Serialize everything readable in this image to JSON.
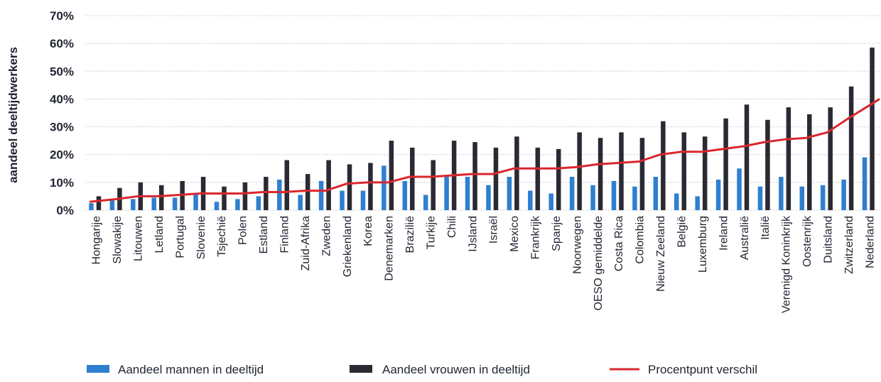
{
  "chart_data": {
    "type": "bar",
    "title": "",
    "xlabel": "",
    "ylabel": "aandeel deeltijdwerkers",
    "ylim": [
      0,
      70
    ],
    "yticks": [
      "0%",
      "10%",
      "20%",
      "30%",
      "40%",
      "50%",
      "60%",
      "70%"
    ],
    "grid": true,
    "legend_position": "bottom",
    "categories": [
      "Hongarije",
      "Slowakije",
      "Litouwen",
      "Letland",
      "Portugal",
      "Slovenie",
      "Tsjechië",
      "Polen",
      "Estland",
      "Finland",
      "Zuid-Afrika",
      "Zweden",
      "Griekenland",
      "Korea",
      "Denemarken",
      "Brazilië",
      "Turkije",
      "Chili",
      "IJsland",
      "Israël",
      "Mexico",
      "Frankrijk",
      "Spanje",
      "Noorwegen",
      "OESO gemiddelde",
      "Costa Rica",
      "Colombia",
      "Nieuw Zeeland",
      "België",
      "Luxemburg",
      "Ireland",
      "Australië",
      "Italië",
      "Verenigd Koninkrijk",
      "Oostenrijk",
      "Duitsland",
      "Zwitzerland",
      "Nederland"
    ],
    "series": [
      {
        "name": "Aandeel mannen in deeltijd",
        "kind": "bar",
        "color": "#2f7fd0",
        "values": [
          2.5,
          3.5,
          4,
          4.5,
          4.5,
          6,
          3,
          4,
          5,
          11,
          5.5,
          10.5,
          7,
          7,
          16,
          10.5,
          5.5,
          12,
          12,
          9,
          12,
          7,
          6,
          12,
          9,
          10.5,
          8.5,
          12,
          6,
          5,
          11,
          15,
          8.5,
          12,
          8.5,
          9,
          11,
          19
        ]
      },
      {
        "name": "Aandeel vrouwen in deeltijd",
        "kind": "bar",
        "color": "#2b2a33",
        "values": [
          5,
          8,
          10,
          9,
          10.5,
          12,
          8.5,
          10,
          12,
          18,
          13,
          18,
          16.5,
          17,
          25,
          22.5,
          18,
          25,
          24.5,
          22.5,
          26.5,
          22.5,
          22,
          28,
          26,
          28,
          26,
          32,
          28,
          26.5,
          33,
          38,
          32.5,
          37,
          34.5,
          37,
          44.5,
          58.5
        ]
      },
      {
        "name": "Procentpunt verschil",
        "kind": "line",
        "color": "#d9272e",
        "values": [
          3,
          4,
          5,
          5,
          5.5,
          6,
          6,
          6,
          6.5,
          6.5,
          7,
          7,
          9.5,
          10,
          10,
          12,
          12,
          12.5,
          13,
          13,
          15,
          15,
          15,
          15.5,
          16.5,
          17,
          17.5,
          20,
          21,
          21,
          22,
          23,
          24.5,
          25.5,
          26,
          28,
          33,
          40
        ]
      }
    ]
  }
}
